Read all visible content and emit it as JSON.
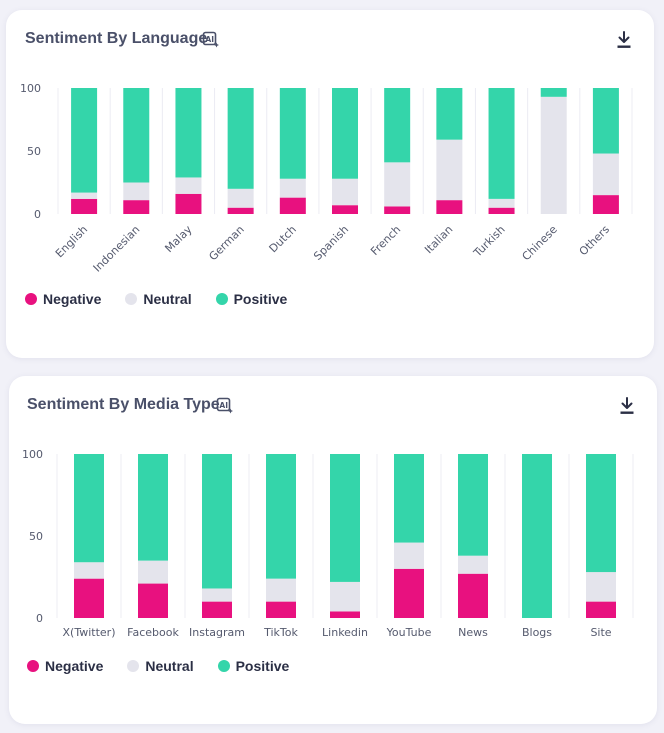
{
  "colors": {
    "negative": "#e8117f",
    "neutral": "#e4e4ec",
    "positive": "#34d5aa"
  },
  "icons": {
    "ai": "ai-sparkle-icon",
    "download": "download-icon"
  },
  "charts": [
    {
      "title": "Sentiment By Language",
      "legend": {
        "negative": "Negative",
        "neutral": "Neutral",
        "positive": "Positive"
      },
      "chart_data": {
        "type": "bar",
        "stacked": true,
        "categories": [
          "English",
          "Indonesian",
          "Malay",
          "German",
          "Dutch",
          "Spanish",
          "French",
          "Italian",
          "Turkish",
          "Chinese",
          "Others"
        ],
        "series": [
          {
            "name": "Negative",
            "values": [
              12,
              11,
              16,
              5,
              13,
              7,
              6,
              11,
              5,
              0,
              15
            ]
          },
          {
            "name": "Neutral",
            "values": [
              5,
              14,
              13,
              15,
              15,
              21,
              35,
              48,
              7,
              93,
              33
            ]
          },
          {
            "name": "Positive",
            "values": [
              83,
              75,
              71,
              80,
              72,
              72,
              59,
              41,
              88,
              7,
              52
            ]
          }
        ],
        "yticks": [
          "100",
          "50",
          "0"
        ],
        "ylim": [
          0,
          100
        ],
        "xlabel": "",
        "ylabel": ""
      }
    },
    {
      "title": "Sentiment By Media Type",
      "legend": {
        "negative": "Negative",
        "neutral": "Neutral",
        "positive": "Positive"
      },
      "chart_data": {
        "type": "bar",
        "stacked": true,
        "categories": [
          "X(Twitter)",
          "Facebook",
          "Instagram",
          "TikTok",
          "Linkedin",
          "YouTube",
          "News",
          "Blogs",
          "Site"
        ],
        "series": [
          {
            "name": "Negative",
            "values": [
              24,
              21,
              10,
              10,
              4,
              30,
              27,
              0,
              10
            ]
          },
          {
            "name": "Neutral",
            "values": [
              10,
              14,
              8,
              14,
              18,
              16,
              11,
              0,
              18
            ]
          },
          {
            "name": "Positive",
            "values": [
              66,
              65,
              82,
              76,
              78,
              54,
              62,
              100,
              72
            ]
          }
        ],
        "yticks": [
          "100",
          "50",
          "0"
        ],
        "ylim": [
          0,
          100
        ],
        "xlabel": "",
        "ylabel": ""
      }
    }
  ]
}
